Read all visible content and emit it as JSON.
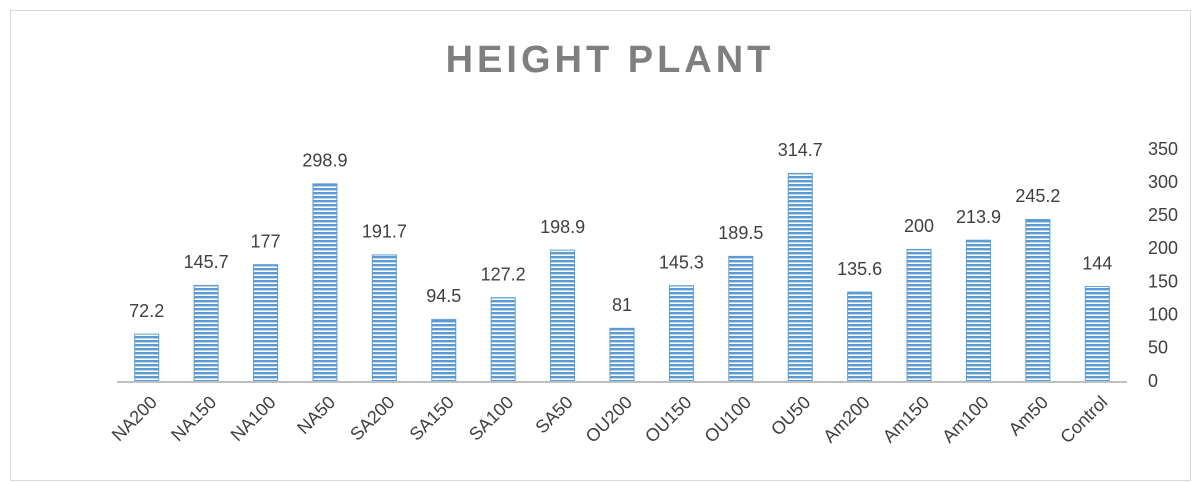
{
  "chart_data": {
    "type": "bar",
    "title": "HEIGHT PLANT",
    "categories": [
      "NA200",
      "NA150",
      "NA100",
      "NA50",
      "SA200",
      "SA150",
      "SA100",
      "SA50",
      "OU200",
      "OU150",
      "OU100",
      "OU50",
      "Am200",
      "Am150",
      "Am100",
      "Am50",
      "Control"
    ],
    "values": [
      72.2,
      145.7,
      177,
      298.9,
      191.7,
      94.5,
      127.2,
      198.9,
      81,
      145.3,
      189.5,
      314.7,
      135.6,
      200,
      213.9,
      245.2,
      144
    ],
    "color": "#5b9bd5",
    "ylim": [
      0,
      350
    ],
    "yticks": [
      0,
      50,
      100,
      150,
      200,
      250,
      300,
      350
    ],
    "y_axis_side": "right",
    "grid": false
  }
}
